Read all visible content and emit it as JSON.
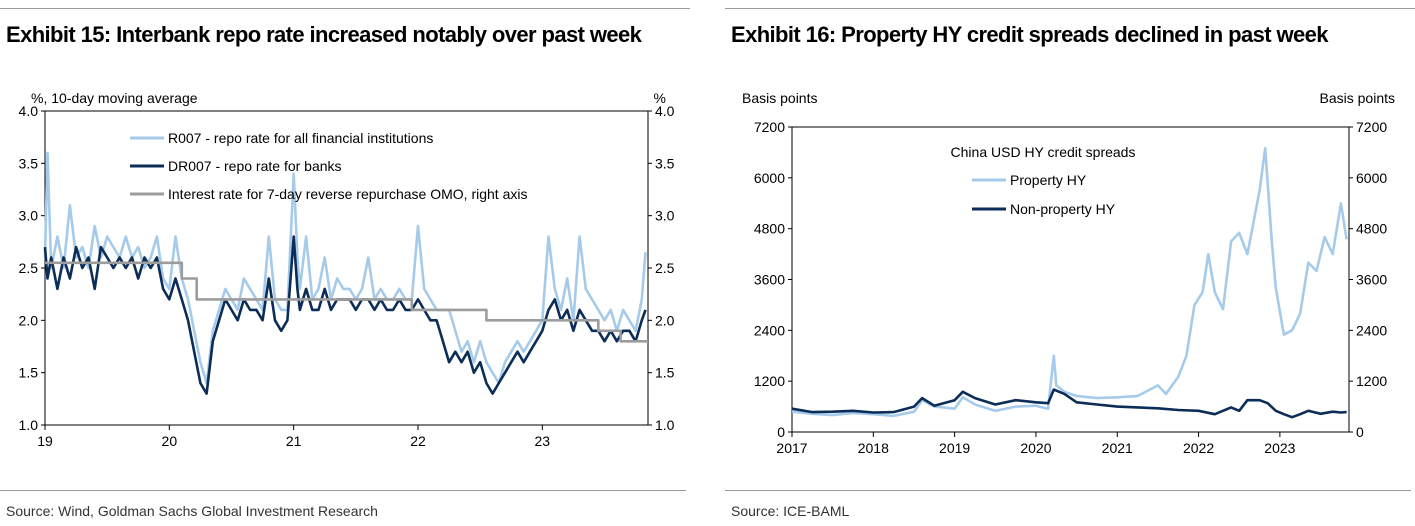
{
  "charts": [
    {
      "title": "Exhibit 15: Interbank repo rate increased notably over past week",
      "source": "Source: Wind, Goldman Sachs Global Investment Research"
    },
    {
      "title": "Exhibit 16: Property HY credit spreads declined in past week",
      "source": "Source: ICE-BAML"
    }
  ],
  "chart_data": [
    {
      "type": "line",
      "title": "Exhibit 15: Interbank repo rate increased notably over past week",
      "ylabel_left": "%, 10-day moving average",
      "ylabel_right": "%",
      "ylim": [
        1.0,
        4.0
      ],
      "yticks": [
        "1.0",
        "1.5",
        "2.0",
        "2.5",
        "3.0",
        "3.5",
        "4.0"
      ],
      "xlim": [
        19,
        23.85
      ],
      "xticks": [
        "19",
        "20",
        "21",
        "22",
        "23"
      ],
      "legend": [
        "R007 - repo rate for all financial institutions",
        "DR007 - repo rate for banks",
        "Interest rate for 7-day reverse repurchase OMO, right axis"
      ],
      "series": [
        {
          "name": "R007 - repo rate for all financial institutions",
          "color": "#a6cbea",
          "x": [
            19.0,
            19.02,
            19.05,
            19.1,
            19.15,
            19.2,
            19.25,
            19.3,
            19.35,
            19.4,
            19.45,
            19.5,
            19.55,
            19.6,
            19.65,
            19.7,
            19.75,
            19.8,
            19.85,
            19.9,
            19.95,
            20.0,
            20.05,
            20.1,
            20.15,
            20.2,
            20.25,
            20.3,
            20.35,
            20.4,
            20.45,
            20.5,
            20.55,
            20.6,
            20.65,
            20.7,
            20.75,
            20.8,
            20.85,
            20.9,
            20.95,
            21.0,
            21.03,
            21.05,
            21.1,
            21.15,
            21.2,
            21.25,
            21.3,
            21.35,
            21.4,
            21.45,
            21.5,
            21.55,
            21.6,
            21.65,
            21.7,
            21.75,
            21.8,
            21.85,
            21.9,
            21.95,
            22.0,
            22.05,
            22.1,
            22.15,
            22.2,
            22.25,
            22.3,
            22.35,
            22.4,
            22.45,
            22.5,
            22.55,
            22.6,
            22.65,
            22.7,
            22.75,
            22.8,
            22.85,
            22.9,
            22.95,
            23.0,
            23.05,
            23.1,
            23.15,
            23.2,
            23.25,
            23.3,
            23.35,
            23.4,
            23.45,
            23.5,
            23.55,
            23.6,
            23.65,
            23.7,
            23.75,
            23.8,
            23.83
          ],
          "y": [
            2.6,
            3.6,
            2.5,
            2.8,
            2.5,
            3.1,
            2.6,
            2.7,
            2.5,
            2.9,
            2.6,
            2.8,
            2.7,
            2.6,
            2.8,
            2.6,
            2.7,
            2.5,
            2.6,
            2.8,
            2.4,
            2.3,
            2.8,
            2.4,
            2.2,
            1.9,
            1.6,
            1.4,
            1.9,
            2.1,
            2.3,
            2.2,
            2.1,
            2.4,
            2.3,
            2.2,
            2.1,
            2.8,
            2.2,
            2.1,
            2.1,
            3.4,
            2.6,
            2.3,
            2.8,
            2.2,
            2.3,
            2.6,
            2.2,
            2.4,
            2.3,
            2.3,
            2.2,
            2.3,
            2.6,
            2.2,
            2.3,
            2.2,
            2.2,
            2.3,
            2.2,
            2.2,
            2.9,
            2.3,
            2.2,
            2.1,
            2.1,
            2.1,
            1.9,
            1.7,
            1.8,
            1.6,
            1.8,
            1.6,
            1.5,
            1.4,
            1.6,
            1.7,
            1.8,
            1.7,
            1.8,
            1.9,
            2.0,
            2.8,
            2.3,
            2.1,
            2.4,
            2.0,
            2.8,
            2.3,
            2.2,
            2.1,
            2.0,
            2.1,
            1.9,
            2.1,
            2.0,
            1.9,
            2.2,
            2.65
          ]
        },
        {
          "name": "DR007 - repo rate for banks",
          "color": "#0b2d57",
          "x": [
            19.0,
            19.02,
            19.05,
            19.1,
            19.15,
            19.2,
            19.25,
            19.3,
            19.35,
            19.4,
            19.45,
            19.5,
            19.55,
            19.6,
            19.65,
            19.7,
            19.75,
            19.8,
            19.85,
            19.9,
            19.95,
            20.0,
            20.05,
            20.1,
            20.15,
            20.2,
            20.25,
            20.3,
            20.35,
            20.4,
            20.45,
            20.5,
            20.55,
            20.6,
            20.65,
            20.7,
            20.75,
            20.8,
            20.85,
            20.9,
            20.95,
            21.0,
            21.03,
            21.05,
            21.1,
            21.15,
            21.2,
            21.25,
            21.3,
            21.35,
            21.4,
            21.45,
            21.5,
            21.55,
            21.6,
            21.65,
            21.7,
            21.75,
            21.8,
            21.85,
            21.9,
            21.95,
            22.0,
            22.05,
            22.1,
            22.15,
            22.2,
            22.25,
            22.3,
            22.35,
            22.4,
            22.45,
            22.5,
            22.55,
            22.6,
            22.65,
            22.7,
            22.75,
            22.8,
            22.85,
            22.9,
            22.95,
            23.0,
            23.05,
            23.1,
            23.15,
            23.2,
            23.25,
            23.3,
            23.35,
            23.4,
            23.45,
            23.5,
            23.55,
            23.6,
            23.65,
            23.7,
            23.75,
            23.8,
            23.83
          ],
          "y": [
            2.7,
            2.4,
            2.6,
            2.3,
            2.6,
            2.4,
            2.7,
            2.5,
            2.6,
            2.3,
            2.7,
            2.6,
            2.5,
            2.6,
            2.5,
            2.6,
            2.4,
            2.6,
            2.5,
            2.6,
            2.3,
            2.2,
            2.4,
            2.2,
            2.0,
            1.7,
            1.4,
            1.3,
            1.8,
            2.0,
            2.2,
            2.1,
            2.0,
            2.2,
            2.1,
            2.1,
            2.0,
            2.4,
            2.0,
            1.9,
            2.0,
            2.8,
            2.3,
            2.1,
            2.3,
            2.1,
            2.1,
            2.3,
            2.1,
            2.2,
            2.2,
            2.2,
            2.1,
            2.2,
            2.2,
            2.1,
            2.2,
            2.1,
            2.1,
            2.2,
            2.1,
            2.1,
            2.2,
            2.1,
            2.0,
            2.0,
            1.8,
            1.6,
            1.7,
            1.6,
            1.7,
            1.5,
            1.6,
            1.4,
            1.3,
            1.4,
            1.5,
            1.6,
            1.7,
            1.6,
            1.7,
            1.8,
            1.9,
            2.1,
            2.2,
            2.0,
            2.1,
            1.9,
            2.1,
            2.0,
            1.9,
            1.9,
            1.8,
            1.9,
            1.8,
            1.9,
            1.9,
            1.8,
            2.0,
            2.1
          ]
        },
        {
          "name": "Interest rate for 7-day reverse repurchase OMO, right axis",
          "color": "#9c9c9c",
          "step": true,
          "x": [
            19.0,
            20.1,
            20.22,
            21.95,
            22.55,
            23.45,
            23.63,
            23.85
          ],
          "y": [
            2.55,
            2.4,
            2.2,
            2.1,
            2.0,
            1.9,
            1.8,
            1.8
          ]
        }
      ]
    },
    {
      "type": "line",
      "title": "Exhibit 16: Property HY credit spreads declined in past week",
      "ylabel_left": "Basis points",
      "ylabel_right": "Basis points",
      "ylim": [
        0,
        7200
      ],
      "yticks": [
        "0",
        "1200",
        "2400",
        "3600",
        "4800",
        "6000",
        "7200"
      ],
      "xlim": [
        2017,
        2023.85
      ],
      "xticks": [
        "2017",
        "2018",
        "2019",
        "2020",
        "2021",
        "2022",
        "2023"
      ],
      "legend_title": "China USD HY credit spreads",
      "legend": [
        "Property HY",
        "Non-property HY"
      ],
      "series": [
        {
          "name": "Property HY",
          "color": "#a6cbea",
          "x": [
            2017.0,
            2017.25,
            2017.5,
            2017.75,
            2018.0,
            2018.25,
            2018.5,
            2018.6,
            2018.75,
            2019.0,
            2019.1,
            2019.25,
            2019.5,
            2019.75,
            2020.0,
            2020.15,
            2020.22,
            2020.25,
            2020.35,
            2020.5,
            2020.75,
            2021.0,
            2021.25,
            2021.5,
            2021.6,
            2021.75,
            2021.85,
            2021.95,
            2022.05,
            2022.12,
            2022.2,
            2022.3,
            2022.4,
            2022.5,
            2022.6,
            2022.7,
            2022.75,
            2022.82,
            2022.9,
            2022.95,
            2023.05,
            2023.15,
            2023.25,
            2023.35,
            2023.45,
            2023.55,
            2023.65,
            2023.75,
            2023.8,
            2023.82
          ],
          "y": [
            480,
            430,
            400,
            450,
            420,
            380,
            480,
            750,
            600,
            550,
            820,
            650,
            500,
            600,
            620,
            550,
            1800,
            1100,
            950,
            850,
            800,
            820,
            850,
            1100,
            900,
            1300,
            1800,
            3000,
            3300,
            4200,
            3300,
            2900,
            4500,
            4700,
            4200,
            5200,
            5700,
            6700,
            4500,
            3400,
            2300,
            2400,
            2800,
            4000,
            3800,
            4600,
            4200,
            5400,
            4800,
            4550
          ]
        },
        {
          "name": "Non-property HY",
          "color": "#0b2d57",
          "x": [
            2017.0,
            2017.25,
            2017.5,
            2017.75,
            2018.0,
            2018.25,
            2018.5,
            2018.6,
            2018.75,
            2019.0,
            2019.1,
            2019.25,
            2019.5,
            2019.75,
            2020.0,
            2020.15,
            2020.22,
            2020.35,
            2020.5,
            2020.75,
            2021.0,
            2021.25,
            2021.5,
            2021.75,
            2022.0,
            2022.2,
            2022.4,
            2022.5,
            2022.6,
            2022.75,
            2022.85,
            2022.95,
            2023.05,
            2023.15,
            2023.25,
            2023.35,
            2023.5,
            2023.65,
            2023.75,
            2023.82
          ],
          "y": [
            550,
            470,
            480,
            500,
            460,
            470,
            600,
            800,
            620,
            750,
            950,
            800,
            650,
            750,
            700,
            680,
            1000,
            900,
            700,
            650,
            600,
            580,
            560,
            520,
            500,
            420,
            580,
            500,
            750,
            750,
            680,
            500,
            420,
            350,
            420,
            500,
            430,
            480,
            460,
            470
          ]
        }
      ]
    }
  ]
}
